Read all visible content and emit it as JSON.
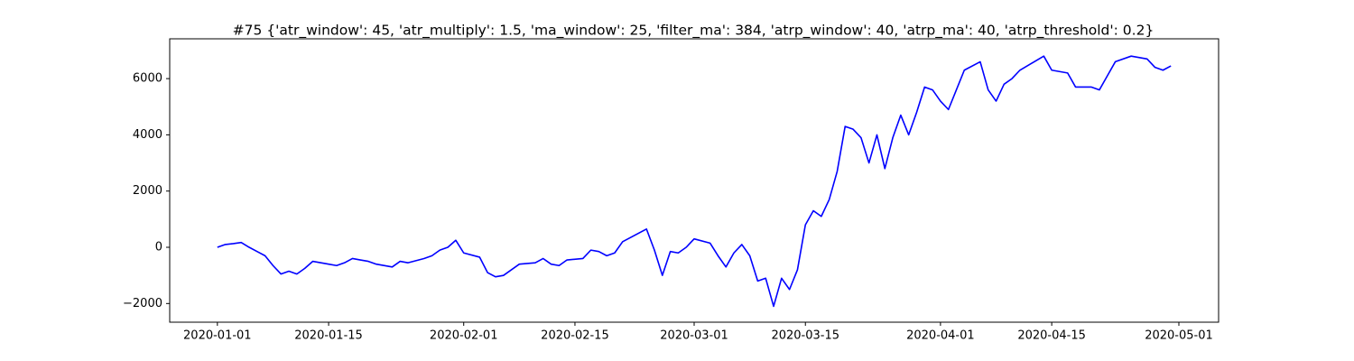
{
  "chart_data": {
    "type": "line",
    "title": "#75 {'atr_window': 45, 'atr_multiply': 1.5, 'ma_window': 25, 'filter_ma': 384, 'atrp_window': 40, 'atrp_ma': 40, 'atrp_threshold': 0.2}",
    "color": "#0000ff",
    "x": [
      "2020-01-01",
      "2020-01-02",
      "2020-01-03",
      "2020-01-04",
      "2020-01-05",
      "2020-01-06",
      "2020-01-07",
      "2020-01-08",
      "2020-01-09",
      "2020-01-10",
      "2020-01-11",
      "2020-01-12",
      "2020-01-13",
      "2020-01-15",
      "2020-01-16",
      "2020-01-17",
      "2020-01-18",
      "2020-01-19",
      "2020-01-20",
      "2020-01-21",
      "2020-01-23",
      "2020-01-24",
      "2020-01-25",
      "2020-01-27",
      "2020-01-28",
      "2020-01-29",
      "2020-01-30",
      "2020-01-31",
      "2020-02-01",
      "2020-02-03",
      "2020-02-04",
      "2020-02-05",
      "2020-02-06",
      "2020-02-07",
      "2020-02-08",
      "2020-02-10",
      "2020-02-11",
      "2020-02-12",
      "2020-02-13",
      "2020-02-14",
      "2020-02-16",
      "2020-02-17",
      "2020-02-18",
      "2020-02-19",
      "2020-02-20",
      "2020-02-21",
      "2020-02-24",
      "2020-02-25",
      "2020-02-26",
      "2020-02-27",
      "2020-02-28",
      "2020-02-29",
      "2020-03-01",
      "2020-03-03",
      "2020-03-04",
      "2020-03-05",
      "2020-03-06",
      "2020-03-07",
      "2020-03-08",
      "2020-03-09",
      "2020-03-10",
      "2020-03-11",
      "2020-03-12",
      "2020-03-13",
      "2020-03-14",
      "2020-03-15",
      "2020-03-16",
      "2020-03-17",
      "2020-03-18",
      "2020-03-19",
      "2020-03-20",
      "2020-03-21",
      "2020-03-22",
      "2020-03-23",
      "2020-03-24",
      "2020-03-25",
      "2020-03-26",
      "2020-03-27",
      "2020-03-28",
      "2020-03-29",
      "2020-03-30",
      "2020-03-31",
      "2020-04-01",
      "2020-04-02",
      "2020-04-03",
      "2020-04-04",
      "2020-04-06",
      "2020-04-07",
      "2020-04-08",
      "2020-04-09",
      "2020-04-10",
      "2020-04-11",
      "2020-04-14",
      "2020-04-15",
      "2020-04-17",
      "2020-04-18",
      "2020-04-20",
      "2020-04-21",
      "2020-04-22",
      "2020-04-23",
      "2020-04-25",
      "2020-04-27",
      "2020-04-28",
      "2020-04-29",
      "2020-04-30"
    ],
    "values": [
      0,
      100,
      130,
      170,
      0,
      -150,
      -300,
      -650,
      -950,
      -850,
      -950,
      -750,
      -500,
      -600,
      -650,
      -550,
      -400,
      -450,
      -500,
      -600,
      -700,
      -500,
      -550,
      -400,
      -300,
      -100,
      0,
      250,
      -200,
      -350,
      -900,
      -1050,
      -1000,
      -800,
      -600,
      -550,
      -400,
      -600,
      -650,
      -450,
      -400,
      -100,
      -150,
      -300,
      -200,
      200,
      650,
      -100,
      -1000,
      -150,
      -200,
      0,
      300,
      150,
      -300,
      -700,
      -200,
      100,
      -300,
      -1200,
      -1100,
      -2100,
      -1100,
      -1500,
      -800,
      800,
      1300,
      1100,
      1700,
      2700,
      4300,
      4200,
      3900,
      3000,
      4000,
      2800,
      3900,
      4700,
      4000,
      4800,
      5700,
      5600,
      5200,
      4900,
      5600,
      6300,
      6600,
      5600,
      5200,
      5800,
      6000,
      6300,
      6800,
      6300,
      6200,
      5700,
      5700,
      5600,
      6100,
      6600,
      6800,
      6700,
      6400,
      6300,
      6450
    ],
    "xlim": [
      "2019-12-26",
      "2020-05-06"
    ],
    "xticks": [
      "2020-01-01",
      "2020-01-15",
      "2020-02-01",
      "2020-02-15",
      "2020-03-01",
      "2020-03-15",
      "2020-04-01",
      "2020-04-15",
      "2020-05-01"
    ],
    "ylim": [
      -2664,
      7416
    ],
    "yticks": [
      {
        "value": -2000,
        "label": "−2000"
      },
      0,
      2000,
      4000,
      6000
    ]
  }
}
